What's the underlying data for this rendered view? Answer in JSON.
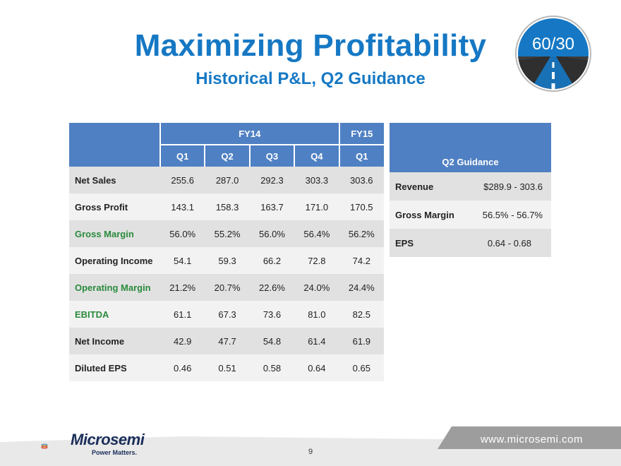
{
  "header": {
    "title": "Maximizing Profitability",
    "subtitle": "Historical P&L, Q2 Guidance",
    "badge_text": "60/30"
  },
  "pl_table": {
    "group_headers": [
      "FY14",
      "FY15"
    ],
    "columns": [
      "Q1",
      "Q2",
      "Q3",
      "Q4",
      "Q1"
    ],
    "rows": [
      {
        "label": "Net Sales",
        "values": [
          "255.6",
          "287.0",
          "292.3",
          "303.3",
          "303.6"
        ]
      },
      {
        "label": "Gross Profit",
        "values": [
          "143.1",
          "158.3",
          "163.7",
          "171.0",
          "170.5"
        ]
      },
      {
        "label": "Gross Margin",
        "values": [
          "56.0%",
          "55.2%",
          "56.0%",
          "56.4%",
          "56.2%"
        ]
      },
      {
        "label": "Operating Income",
        "values": [
          "54.1",
          "59.3",
          "66.2",
          "72.8",
          "74.2"
        ]
      },
      {
        "label": "Operating Margin",
        "values": [
          "21.2%",
          "20.7%",
          "22.6%",
          "24.0%",
          "24.4%"
        ]
      },
      {
        "label": "EBITDA",
        "values": [
          "61.1",
          "67.3",
          "73.6",
          "81.0",
          "82.5"
        ]
      },
      {
        "label": "Net Income",
        "values": [
          "42.9",
          "47.7",
          "54.8",
          "61.4",
          "61.9"
        ]
      },
      {
        "label": "Diluted EPS",
        "values": [
          "0.46",
          "0.51",
          "0.58",
          "0.64",
          "0.65"
        ]
      }
    ]
  },
  "guidance": {
    "header": "Q2 Guidance",
    "rows": [
      {
        "label": "Revenue",
        "value": "$289.9 - 303.6"
      },
      {
        "label": "Gross Margin",
        "value": "56.5% - 56.7%"
      },
      {
        "label": "EPS",
        "value": "0.64 - 0.68"
      }
    ]
  },
  "footer": {
    "logo_name": "Microsemi",
    "logo_tagline": "Power Matters.",
    "page_number": "9",
    "website": "www.microsemi.com"
  },
  "colors": {
    "title_blue": "#1678c4",
    "header_blue": "#4f80c3",
    "highlight_green": "#2a8a3c",
    "row_dark": "#e1e1e1",
    "row_light": "#f2f2f2"
  }
}
